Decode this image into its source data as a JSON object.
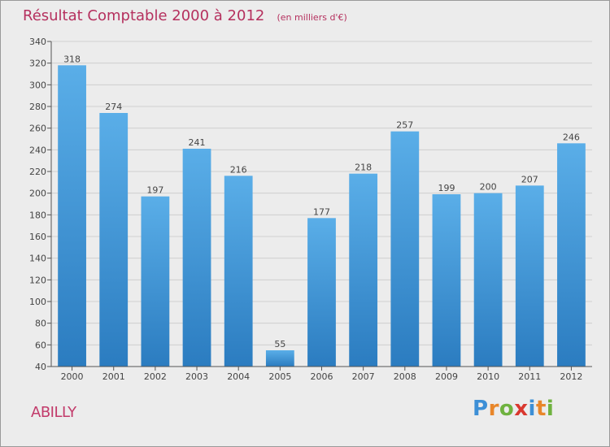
{
  "header": {
    "title": "Résultat Comptable 2000 à 2012",
    "subtitle": "(en milliers d'€)"
  },
  "footer": {
    "town": "ABILLY",
    "logo_letters": [
      "P",
      "r",
      "o",
      "x",
      "i",
      "t",
      "i"
    ],
    "logo_colors": [
      "#3d8fd6",
      "#e8862a",
      "#6fb23f",
      "#d9382f",
      "#3d8fd6",
      "#e8862a",
      "#6fb23f"
    ]
  },
  "chart_data": {
    "type": "bar",
    "title": "Résultat Comptable 2000 à 2012",
    "subtitle": "(en milliers d'€)",
    "xlabel": "",
    "ylabel": "",
    "ylim": [
      40,
      340
    ],
    "ytick_step": 20,
    "grid": true,
    "categories": [
      "2000",
      "2001",
      "2002",
      "2003",
      "2004",
      "2005",
      "2006",
      "2007",
      "2008",
      "2009",
      "2010",
      "2011",
      "2012"
    ],
    "values": [
      318,
      274,
      197,
      241,
      216,
      55,
      177,
      218,
      257,
      199,
      200,
      207,
      246
    ],
    "colors": {
      "bar_top": "#5aaee8",
      "bar_bottom": "#2b7cc0",
      "grid": "#cfcfcf",
      "axis": "#555555",
      "text": "#444444"
    }
  }
}
